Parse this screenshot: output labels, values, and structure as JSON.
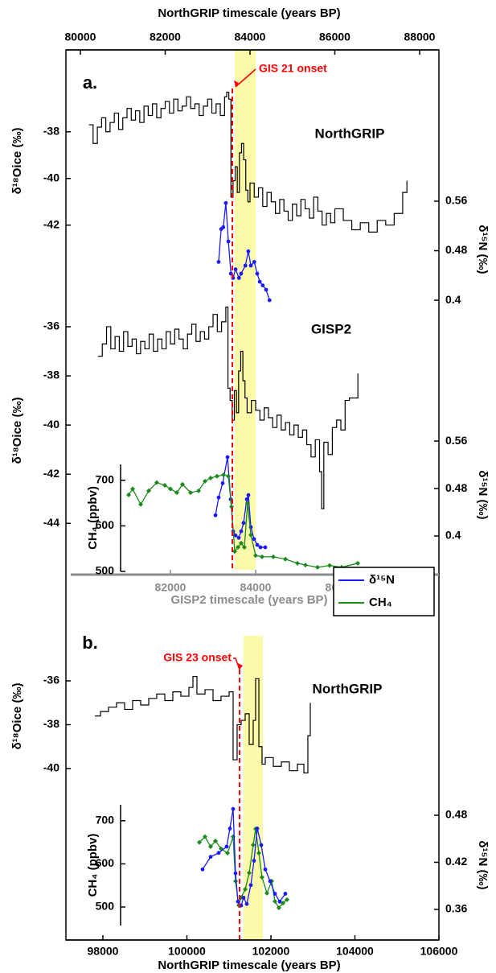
{
  "chart_data": [
    {
      "type": "line",
      "panel_label": "a.",
      "label": "NorthGRIP",
      "xlabel": "NorthGRIP timescale (years BP)",
      "xlim": [
        79659,
        88455
      ],
      "xticks": [
        80000,
        82000,
        84000,
        86000,
        88000
      ],
      "shade": {
        "x": [
          83640,
          84130
        ],
        "color": "#fbf99a"
      },
      "onset": {
        "text": "GIS 21 onset",
        "x": 83583,
        "color": "#ff0000"
      },
      "axes": [
        {
          "side": "left",
          "ylabel": "δ¹⁸Oice (‰)",
          "ylim": [
            -42.7,
            -35.8
          ],
          "yticks": [
            -38,
            -40,
            -42
          ],
          "series": [
            {
              "color": "#000000",
              "step": true,
              "x": [
                80200,
                80300,
                80400,
                80500,
                80600,
                80700,
                80800,
                80900,
                81000,
                81100,
                81200,
                81300,
                81400,
                81500,
                81600,
                81700,
                81800,
                81900,
                82000,
                82100,
                82200,
                82300,
                82400,
                82500,
                82600,
                82700,
                82800,
                82900,
                83000,
                83100,
                83200,
                83300,
                83400,
                83450,
                83500,
                83550,
                83600,
                83650,
                83700,
                83750,
                83800,
                83850,
                83900,
                83950,
                84000,
                84100,
                84200,
                84300,
                84400,
                84500,
                84600,
                84700,
                84800,
                84900,
                85000,
                85100,
                85200,
                85300,
                85400,
                85500,
                85600,
                85700,
                85800,
                85900,
                86000,
                86200,
                86400,
                86600,
                86800,
                87000,
                87200,
                87400,
                87600,
                87700
              ],
              "values": [
                -37.7,
                -38.5,
                -37.8,
                -37.4,
                -38.0,
                -37.6,
                -37.2,
                -37.9,
                -37.4,
                -37.0,
                -37.5,
                -37.1,
                -37.6,
                -36.9,
                -37.3,
                -36.8,
                -37.4,
                -37.0,
                -36.7,
                -37.2,
                -36.6,
                -37.1,
                -36.9,
                -36.5,
                -37.0,
                -36.8,
                -37.3,
                -36.9,
                -36.6,
                -37.2,
                -36.8,
                -37.3,
                -36.5,
                -36.3,
                -36.6,
                -40.8,
                -40.1,
                -39.5,
                -40.6,
                -38.9,
                -38.5,
                -39.2,
                -40.5,
                -41.0,
                -40.2,
                -40.8,
                -40.4,
                -41.2,
                -40.6,
                -41.0,
                -41.5,
                -40.9,
                -41.4,
                -41.8,
                -41.1,
                -41.6,
                -40.9,
                -41.3,
                -41.7,
                -40.8,
                -41.4,
                -42.0,
                -41.5,
                -41.9,
                -41.3,
                -41.8,
                -42.2,
                -41.9,
                -42.3,
                -41.8,
                -42.0,
                -41.5,
                -40.6,
                -40.1
              ]
            }
          ]
        },
        {
          "side": "right",
          "ylabel": "δ¹⁵N (‰)",
          "ylim": [
            0.391,
            0.573
          ],
          "yticks": [
            0.56,
            0.48,
            0.4
          ],
          "series": [
            {
              "color": "#1a1aff",
              "marker": "circle",
              "x": [
                83260,
                83320,
                83370,
                83430,
                83490,
                83550,
                83600,
                83660,
                83740,
                83790,
                83890,
                83960,
                84020,
                84100,
                84170,
                84230,
                84300,
                84380,
                84460
              ],
              "values": [
                0.462,
                0.515,
                0.518,
                0.557,
                0.495,
                0.443,
                0.436,
                0.45,
                0.436,
                0.443,
                0.456,
                0.479,
                0.456,
                0.462,
                0.443,
                0.43,
                0.424,
                0.417,
                0.4
              ]
            }
          ]
        }
      ]
    },
    {
      "type": "line",
      "label": "GISP2",
      "xlabel": "GISP2 timescale (years BP)",
      "xlim": [
        79660,
        88302
      ],
      "xticks": [
        82000,
        84000,
        86000
      ],
      "legend": "lower right",
      "axes": [
        {
          "side": "left",
          "ylabel": "δ¹⁸Oice (‰)",
          "ylim": [
            -45.3,
            -35.15
          ],
          "yticks": [
            -36,
            -38,
            -40,
            -42,
            -44
          ],
          "series": [
            {
              "color": "#000000",
              "step": true,
              "x": [
                80300,
                80400,
                80500,
                80600,
                80700,
                80800,
                80900,
                81000,
                81100,
                81200,
                81300,
                81400,
                81500,
                81600,
                81700,
                81800,
                81900,
                82000,
                82100,
                82200,
                82300,
                82400,
                82500,
                82600,
                82700,
                82800,
                82900,
                83000,
                83100,
                83200,
                83300,
                83350,
                83400,
                83450,
                83500,
                83550,
                83600,
                83650,
                83700,
                83750,
                83800,
                83900,
                84000,
                84100,
                84200,
                84300,
                84400,
                84500,
                84600,
                84700,
                84800,
                84900,
                85000,
                85100,
                85200,
                85300,
                85400,
                85500,
                85550,
                85600,
                85700,
                85800,
                85900,
                86000,
                86100,
                86200,
                86400
              ],
              "values": [
                -37.2,
                -36.7,
                -36.0,
                -36.9,
                -36.4,
                -37.0,
                -36.2,
                -36.8,
                -36.5,
                -37.1,
                -36.6,
                -36.9,
                -36.3,
                -37.0,
                -36.5,
                -36.9,
                -36.2,
                -36.7,
                -36.1,
                -36.5,
                -36.9,
                -36.3,
                -35.9,
                -36.6,
                -36.2,
                -36.5,
                -36.0,
                -35.5,
                -36.2,
                -35.8,
                -35.2,
                -38.5,
                -39.0,
                -39.8,
                -38.6,
                -39.5,
                -37.8,
                -37.0,
                -38.2,
                -38.9,
                -39.5,
                -39.0,
                -39.4,
                -39.8,
                -39.3,
                -39.7,
                -40.1,
                -39.6,
                -40.2,
                -39.9,
                -40.4,
                -40.0,
                -40.5,
                -40.2,
                -40.8,
                -41.3,
                -40.6,
                -41.9,
                -43.4,
                -40.7,
                -41.2,
                -40.1,
                -39.8,
                -40.2,
                -39.0,
                -38.9,
                -37.9
              ]
            }
          ]
        },
        {
          "side": "right",
          "ylabel": "δ¹⁵N (‰)",
          "ylim": [
            0.3675,
            0.571
          ],
          "yticks": [
            0.56,
            0.48,
            0.4
          ],
          "series": [
            {
              "name": "δ¹⁵N",
              "color": "#1a1aff",
              "marker": "circle",
              "x": [
                83057,
                83132,
                83226,
                83340,
                83415,
                83472,
                83528,
                83604,
                83660,
                83717,
                83792,
                83830,
                83887,
                83962,
                84038,
                84113,
                84226
              ],
              "values": [
                0.435,
                0.465,
                0.489,
                0.533,
                0.462,
                0.408,
                0.401,
                0.397,
                0.408,
                0.422,
                0.462,
                0.469,
                0.415,
                0.395,
                0.385,
                0.381,
                0.381
              ]
            }
          ]
        },
        {
          "side": "inner",
          "ylabel": "CH₄ (ppbv)",
          "ylim": [
            500,
            735
          ],
          "yticks": [
            700,
            600,
            500
          ],
          "series": [
            {
              "name": "CH₄",
              "color": "#1a8a1a",
              "marker": "diamond",
              "x": [
                81019,
                81113,
                81302,
                81491,
                81679,
                81868,
                82000,
                82151,
                82283,
                82472,
                82660,
                82811,
                82943,
                83094,
                83245,
                83358,
                83434,
                83509,
                83585,
                83660,
                83736,
                83811,
                83887,
                84000,
                84151,
                84415,
                84698,
                84981,
                85170,
                85453,
                85736,
                86019,
                86396
              ],
              "values": [
                668,
                681,
                647,
                677,
                695,
                689,
                681,
                673,
                691,
                673,
                677,
                698,
                705,
                709,
                712,
                709,
                642,
                544,
                553,
                562,
                553,
                650,
                580,
                535,
                532,
                532,
                527,
                518,
                514,
                509,
                513,
                509,
                518
              ]
            }
          ]
        }
      ]
    },
    {
      "type": "line",
      "panel_label": "b.",
      "label": "NorthGRIP",
      "xlabel": "NorthGRIP timescale (years BP)",
      "xlim": [
        97120,
        106000
      ],
      "xticks": [
        98000,
        100000,
        102000,
        104000,
        106000
      ],
      "shade": {
        "x": [
          101350,
          101809
        ],
        "color": "#fbf99a"
      },
      "onset": {
        "text": "GIS 23 onset",
        "x": 101254,
        "color": "#ff0000"
      },
      "axes": [
        {
          "side": "left",
          "ylabel": "δ¹⁸Oice (‰)",
          "ylim": [
            -40.92,
            -34.31
          ],
          "yticks": [
            -36,
            -38,
            -40
          ],
          "series": [
            {
              "color": "#000000",
              "step": true,
              "x": [
                97809,
                97943,
                98134,
                98325,
                98517,
                98708,
                98900,
                99091,
                99282,
                99474,
                99665,
                99856,
                100048,
                100144,
                100239,
                100431,
                100622,
                100813,
                101005,
                101100,
                101196,
                101292,
                101388,
                101483,
                101579,
                101636,
                101713,
                101789,
                101866,
                102057,
                102249,
                102440,
                102632,
                102785,
                102880,
                102938
              ],
              "values": [
                -37.6,
                -37.4,
                -37.2,
                -37.0,
                -37.3,
                -36.9,
                -37.1,
                -36.8,
                -36.6,
                -36.9,
                -36.5,
                -36.7,
                -36.3,
                -35.8,
                -36.6,
                -36.4,
                -36.9,
                -36.7,
                -36.5,
                -39.6,
                -38.0,
                -37.8,
                -37.5,
                -38.9,
                -37.8,
                -35.9,
                -39.0,
                -39.8,
                -39.5,
                -39.9,
                -39.7,
                -40.1,
                -39.8,
                -40.2,
                -38.5,
                -37.0
              ]
            }
          ]
        },
        {
          "side": "inner",
          "ylabel": "CH₄ (ppbv)",
          "ylim": [
            457,
            737
          ],
          "yticks": [
            700,
            600,
            500
          ],
          "series": [
            {
              "color": "#1a8a1a",
              "marker": "diamond",
              "x": [
                100297,
                100431,
                100565,
                100679,
                100813,
                100967,
                101100,
                101158,
                101234,
                101292,
                101388,
                101483,
                101579,
                101636,
                101713,
                101789,
                101904,
                102019,
                102096,
                102191,
                102287,
                102383
              ],
              "values": [
                650,
                663,
                640,
                653,
                635,
                625,
                663,
                560,
                504,
                522,
                541,
                579,
                644,
                681,
                625,
                569,
                532,
                560,
                513,
                498,
                509,
                517
              ]
            }
          ]
        },
        {
          "side": "right",
          "ylabel": "δ¹⁵N (‰)",
          "ylim": [
            0.3395,
            0.4933
          ],
          "yticks": [
            0.48,
            0.42,
            0.36
          ],
          "series": [
            {
              "color": "#1a1aff",
              "marker": "circle",
              "x": [
                100373,
                100565,
                100756,
                100947,
                101024,
                101100,
                101158,
                101215,
                101292,
                101349,
                101426,
                101522,
                101598,
                101675,
                101770,
                101866,
                101981,
                102096,
                102211,
                102344
              ],
              "values": [
                0.411,
                0.427,
                0.432,
                0.44,
                0.463,
                0.488,
                0.406,
                0.37,
                0.365,
                0.375,
                0.367,
                0.391,
                0.422,
                0.463,
                0.442,
                0.411,
                0.396,
                0.38,
                0.37,
                0.38
              ]
            }
          ]
        }
      ]
    }
  ]
}
